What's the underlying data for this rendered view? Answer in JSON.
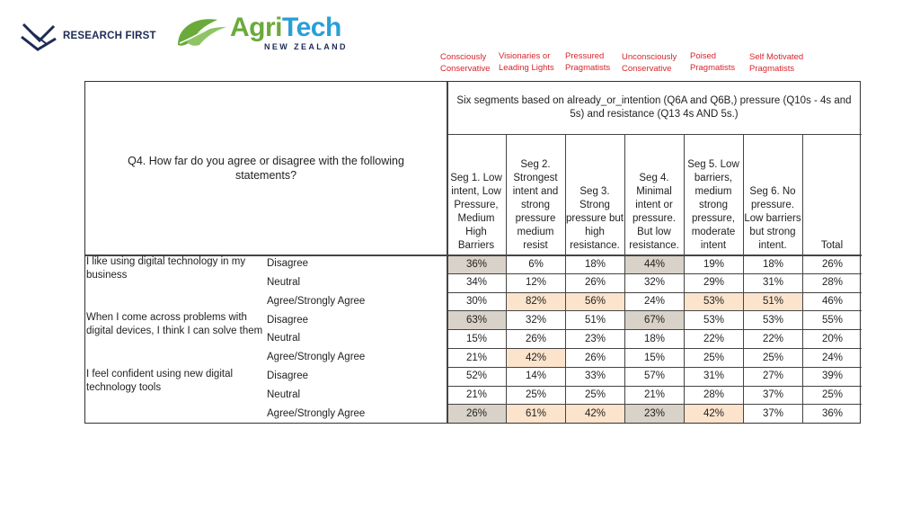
{
  "logos": {
    "research_first": "RESEARCH FIRST",
    "agritech_agri": "Agri",
    "agritech_tech": "Tech",
    "agritech_sub": "NEW ZEALAND",
    "colors": {
      "agri_green": "#6aaa3a",
      "tech_blue": "#2a9fd8",
      "navy": "#1e2b55"
    }
  },
  "segment_labels": [
    "Consciously\nConservative",
    "Visionaries or\nLeading Lights",
    "Pressured\nPragmatists",
    "Unconsciously\nConservative",
    "Poised\nPragmatists",
    "Self Motivated\nPragmatists"
  ],
  "table": {
    "question": "Q4. How far do you agree or disagree with the following statements?",
    "segments_title": "Six segments based on already_or_intention (Q6A and Q6B,)  pressure (Q10s - 4s and 5s) and resistance (Q13 4s AND 5s.)",
    "columns": [
      "Seg 1. Low intent, Low Pressure, Medium High Barriers",
      "Seg 2. Strongest intent and strong pressure medium resist",
      "Seg 3. Strong pressure but high resistance.",
      "Seg 4. Minimal intent or pressure. But low resistance.",
      "Seg 5. Low barriers, medium strong pressure, moderate intent",
      "Seg 6. No pressure. Low barriers but strong intent.",
      "Total"
    ],
    "statements": [
      {
        "text": "I like using digital technology in my business",
        "rows": [
          {
            "label": "Disagree",
            "values": [
              "36%",
              "6%",
              "18%",
              "44%",
              "19%",
              "18%",
              "26%"
            ],
            "highlight": [
              "gray",
              "",
              "",
              "gray",
              "",
              "",
              ""
            ]
          },
          {
            "label": "Neutral",
            "values": [
              "34%",
              "12%",
              "26%",
              "32%",
              "29%",
              "31%",
              "28%"
            ],
            "highlight": [
              "",
              "",
              "",
              "",
              "",
              "",
              ""
            ]
          },
          {
            "label": "Agree/Strongly Agree",
            "values": [
              "30%",
              "82%",
              "56%",
              "24%",
              "53%",
              "51%",
              "46%"
            ],
            "highlight": [
              "",
              "peach",
              "peach",
              "",
              "peach",
              "peach",
              ""
            ]
          }
        ]
      },
      {
        "text": "When I come across problems with digital devices, I think I can solve them",
        "rows": [
          {
            "label": "Disagree",
            "values": [
              "63%",
              "32%",
              "51%",
              "67%",
              "53%",
              "53%",
              "55%"
            ],
            "highlight": [
              "gray",
              "",
              "",
              "gray",
              "",
              "",
              ""
            ]
          },
          {
            "label": "Neutral",
            "values": [
              "15%",
              "26%",
              "23%",
              "18%",
              "22%",
              "22%",
              "20%"
            ],
            "highlight": [
              "",
              "",
              "",
              "",
              "",
              "",
              ""
            ]
          },
          {
            "label": "Agree/Strongly Agree",
            "values": [
              "21%",
              "42%",
              "26%",
              "15%",
              "25%",
              "25%",
              "24%"
            ],
            "highlight": [
              "",
              "peach",
              "",
              "",
              "",
              "",
              ""
            ]
          }
        ]
      },
      {
        "text": "I feel confident using new digital technology tools",
        "rows": [
          {
            "label": "Disagree",
            "values": [
              "52%",
              "14%",
              "33%",
              "57%",
              "31%",
              "27%",
              "39%"
            ],
            "highlight": [
              "",
              "",
              "",
              "",
              "",
              "",
              ""
            ]
          },
          {
            "label": "Neutral",
            "values": [
              "21%",
              "25%",
              "25%",
              "21%",
              "28%",
              "37%",
              "25%"
            ],
            "highlight": [
              "",
              "",
              "",
              "",
              "",
              "",
              ""
            ]
          },
          {
            "label": "Agree/Strongly Agree",
            "values": [
              "26%",
              "61%",
              "42%",
              "23%",
              "42%",
              "37%",
              "36%"
            ],
            "highlight": [
              "gray",
              "peach",
              "peach",
              "gray",
              "peach",
              "",
              ""
            ]
          }
        ]
      }
    ]
  }
}
